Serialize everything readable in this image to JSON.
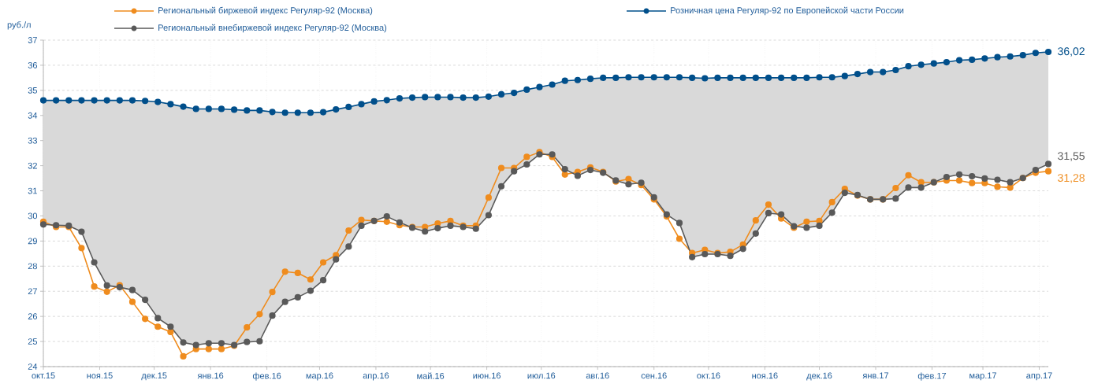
{
  "chart_data": {
    "type": "line",
    "ylabel": "руб./л",
    "x": [
      "2015-10-01",
      "2015-10-08",
      "2015-10-15",
      "2015-10-22",
      "2015-10-29",
      "2015-11-05",
      "2015-11-12",
      "2015-11-19",
      "2015-11-26",
      "2015-12-03",
      "2015-12-10",
      "2015-12-17",
      "2015-12-24",
      "2015-12-31",
      "2016-01-07",
      "2016-01-14",
      "2016-01-21",
      "2016-01-28",
      "2016-02-04",
      "2016-02-11",
      "2016-02-18",
      "2016-02-25",
      "2016-03-03",
      "2016-03-10",
      "2016-03-17",
      "2016-03-24",
      "2016-03-31",
      "2016-04-07",
      "2016-04-14",
      "2016-04-21",
      "2016-04-28",
      "2016-05-05",
      "2016-05-12",
      "2016-05-19",
      "2016-05-26",
      "2016-06-02",
      "2016-06-09",
      "2016-06-16",
      "2016-06-23",
      "2016-06-30",
      "2016-07-07",
      "2016-07-14",
      "2016-07-21",
      "2016-07-28",
      "2016-08-04",
      "2016-08-11",
      "2016-08-18",
      "2016-08-25",
      "2016-09-01",
      "2016-09-08",
      "2016-09-15",
      "2016-09-22",
      "2016-09-29",
      "2016-10-06",
      "2016-10-13",
      "2016-10-20",
      "2016-10-27",
      "2016-11-03",
      "2016-11-10",
      "2016-11-17",
      "2016-11-24",
      "2016-12-01",
      "2016-12-08",
      "2016-12-15",
      "2016-12-22",
      "2016-12-29",
      "2017-01-05",
      "2017-01-12",
      "2017-01-19",
      "2017-01-26",
      "2017-02-02",
      "2017-02-09",
      "2017-02-16",
      "2017-02-23",
      "2017-03-02",
      "2017-03-09",
      "2017-03-16",
      "2017-03-23",
      "2017-03-30",
      "2017-04-06"
    ],
    "series": [
      {
        "name": "Региональный биржевой индекс Регуляр-92 (Москва)",
        "color": "#ef8c1e",
        "values": [
          29.77,
          29.56,
          29.56,
          28.72,
          27.19,
          26.98,
          27.24,
          26.58,
          25.9,
          25.59,
          25.38,
          24.41,
          24.7,
          24.7,
          24.7,
          24.83,
          25.56,
          26.09,
          26.97,
          27.78,
          27.73,
          27.47,
          28.15,
          28.44,
          29.42,
          29.84,
          29.8,
          29.77,
          29.63,
          29.56,
          29.56,
          29.7,
          29.8,
          29.61,
          29.61,
          30.73,
          31.91,
          31.91,
          32.35,
          32.54,
          32.35,
          31.65,
          31.75,
          31.93,
          31.75,
          31.37,
          31.47,
          31.23,
          30.66,
          29.98,
          29.09,
          28.52,
          28.65,
          28.52,
          28.57,
          28.86,
          29.82,
          30.45,
          29.9,
          29.53,
          29.77,
          29.8,
          30.55,
          31.08,
          30.81,
          30.66,
          30.66,
          31.11,
          31.62,
          31.34,
          31.34,
          31.41,
          31.41,
          31.31,
          31.31,
          31.16,
          31.13,
          31.51,
          31.72,
          31.78
        ]
      },
      {
        "name": "Розничная цена Регуляр-92 по Европейской части России",
        "color": "#004f8b",
        "values": [
          34.6,
          34.6,
          34.6,
          34.6,
          34.6,
          34.6,
          34.6,
          34.6,
          34.58,
          34.54,
          34.45,
          34.35,
          34.26,
          34.26,
          34.26,
          34.23,
          34.2,
          34.2,
          34.14,
          34.11,
          34.11,
          34.11,
          34.13,
          34.24,
          34.34,
          34.45,
          34.56,
          34.61,
          34.68,
          34.71,
          34.73,
          34.73,
          34.73,
          34.71,
          34.71,
          34.75,
          34.84,
          34.9,
          35.03,
          35.13,
          35.23,
          35.38,
          35.41,
          35.46,
          35.5,
          35.5,
          35.52,
          35.52,
          35.52,
          35.52,
          35.52,
          35.5,
          35.48,
          35.5,
          35.5,
          35.5,
          35.5,
          35.5,
          35.5,
          35.5,
          35.5,
          35.52,
          35.52,
          35.57,
          35.65,
          35.73,
          35.73,
          35.81,
          35.96,
          36.02,
          36.07,
          36.12,
          36.2,
          36.22,
          36.27,
          36.32,
          36.35,
          36.4,
          36.49,
          36.53
        ],
        "upper": [
          34.6,
          34.6,
          34.6,
          34.6,
          34.6,
          34.6,
          34.6,
          34.6,
          34.58,
          34.54,
          34.45,
          34.35,
          34.26,
          34.26,
          34.26,
          34.23,
          34.2,
          34.2,
          34.14,
          34.11,
          34.11,
          34.11,
          34.13,
          34.24,
          34.34,
          34.45,
          34.56,
          34.61,
          34.68,
          34.71,
          34.73,
          34.73,
          34.73,
          34.71,
          34.71,
          34.75,
          34.84,
          34.9,
          35.03,
          35.13,
          35.23,
          35.38,
          35.41,
          35.46,
          35.5,
          35.5,
          35.52,
          35.52,
          35.52,
          35.52,
          35.52,
          35.5,
          35.48,
          35.5,
          35.5,
          35.5,
          35.5,
          35.5,
          35.5,
          35.5,
          35.5,
          35.52,
          35.52,
          35.57,
          35.65,
          35.73,
          35.73,
          35.81,
          35.96,
          36.02,
          36.07,
          36.12,
          36.2,
          36.22,
          36.27,
          36.32,
          36.35,
          36.4,
          36.49,
          36.53
        ],
        "lower": [
          29.66,
          29.63,
          29.61,
          29.37,
          28.15,
          27.23,
          27.16,
          27.05,
          26.66,
          25.93,
          25.59,
          24.96,
          24.86,
          24.93,
          24.93,
          24.86,
          24.98,
          25.01,
          26.03,
          26.58,
          26.76,
          27.02,
          27.44,
          28.27,
          28.78,
          29.61,
          29.8,
          29.98,
          29.74,
          29.53,
          29.38,
          29.51,
          29.61,
          29.56,
          29.49,
          30.03,
          31.18,
          31.78,
          32.05,
          32.45,
          32.45,
          31.86,
          31.6,
          31.83,
          31.72,
          31.41,
          31.26,
          31.32,
          30.74,
          30.06,
          29.72,
          28.36,
          28.48,
          28.48,
          28.41,
          28.69,
          29.3,
          30.11,
          30.06,
          29.59,
          29.53,
          29.61,
          30.13,
          30.92,
          30.83,
          30.66,
          30.66,
          30.69,
          31.13,
          31.13,
          31.34,
          31.55,
          31.65,
          31.58,
          31.49,
          31.44,
          31.34,
          31.51,
          31.83,
          32.07
        ]
      },
      {
        "name": "Региональный внебиржевой индекс Регуляр-92 (Москва)",
        "color": "#595959",
        "values": [
          29.66,
          29.63,
          29.61,
          29.37,
          28.15,
          27.23,
          27.16,
          27.05,
          26.66,
          25.93,
          25.59,
          24.96,
          24.86,
          24.93,
          24.93,
          24.86,
          24.98,
          25.01,
          26.03,
          26.58,
          26.76,
          27.02,
          27.44,
          28.27,
          28.78,
          29.61,
          29.8,
          29.98,
          29.74,
          29.53,
          29.38,
          29.51,
          29.61,
          29.56,
          29.49,
          30.03,
          31.18,
          31.78,
          32.05,
          32.45,
          32.45,
          31.86,
          31.6,
          31.83,
          31.72,
          31.41,
          31.26,
          31.32,
          30.74,
          30.06,
          29.72,
          28.36,
          28.48,
          28.48,
          28.41,
          28.69,
          29.3,
          30.11,
          30.06,
          29.59,
          29.53,
          29.61,
          30.13,
          30.92,
          30.83,
          30.66,
          30.66,
          30.69,
          31.13,
          31.13,
          31.34,
          31.55,
          31.65,
          31.58,
          31.49,
          31.44,
          31.34,
          31.51,
          31.83,
          32.07
        ]
      }
    ],
    "xlim": [
      "2015-10-01",
      "2017-04-06"
    ],
    "xticks": [
      {
        "value": "2015-10-01",
        "label": "окт.15"
      },
      {
        "value": "2015-11-01",
        "label": "ноя.15"
      },
      {
        "value": "2015-12-01",
        "label": "дек.15"
      },
      {
        "value": "2016-01-01",
        "label": "янв.16"
      },
      {
        "value": "2016-02-01",
        "label": "фев.16"
      },
      {
        "value": "2016-03-01",
        "label": "мар.16"
      },
      {
        "value": "2016-04-01",
        "label": "апр.16"
      },
      {
        "value": "2016-05-01",
        "label": "май.16"
      },
      {
        "value": "2016-06-01",
        "label": "июн.16"
      },
      {
        "value": "2016-07-01",
        "label": "июл.16"
      },
      {
        "value": "2016-08-01",
        "label": "авг.16"
      },
      {
        "value": "2016-09-01",
        "label": "сен.16"
      },
      {
        "value": "2016-10-01",
        "label": "окт.16"
      },
      {
        "value": "2016-11-01",
        "label": "ноя.16"
      },
      {
        "value": "2016-12-01",
        "label": "дек.16"
      },
      {
        "value": "2017-01-01",
        "label": "янв.17"
      },
      {
        "value": "2017-02-01",
        "label": "фев.17"
      },
      {
        "value": "2017-03-01",
        "label": "мар.17"
      },
      {
        "value": "2017-04-01",
        "label": "апр.17"
      }
    ],
    "ylim": [
      24,
      37
    ],
    "yticks": [
      24,
      25,
      26,
      27,
      28,
      29,
      30,
      31,
      32,
      33,
      34,
      35,
      36,
      37
    ],
    "annotations": [
      "36,02",
      "31,55",
      "31,28"
    ],
    "grid": true,
    "legend": "top",
    "marker": "circle",
    "line_style": "solid"
  }
}
